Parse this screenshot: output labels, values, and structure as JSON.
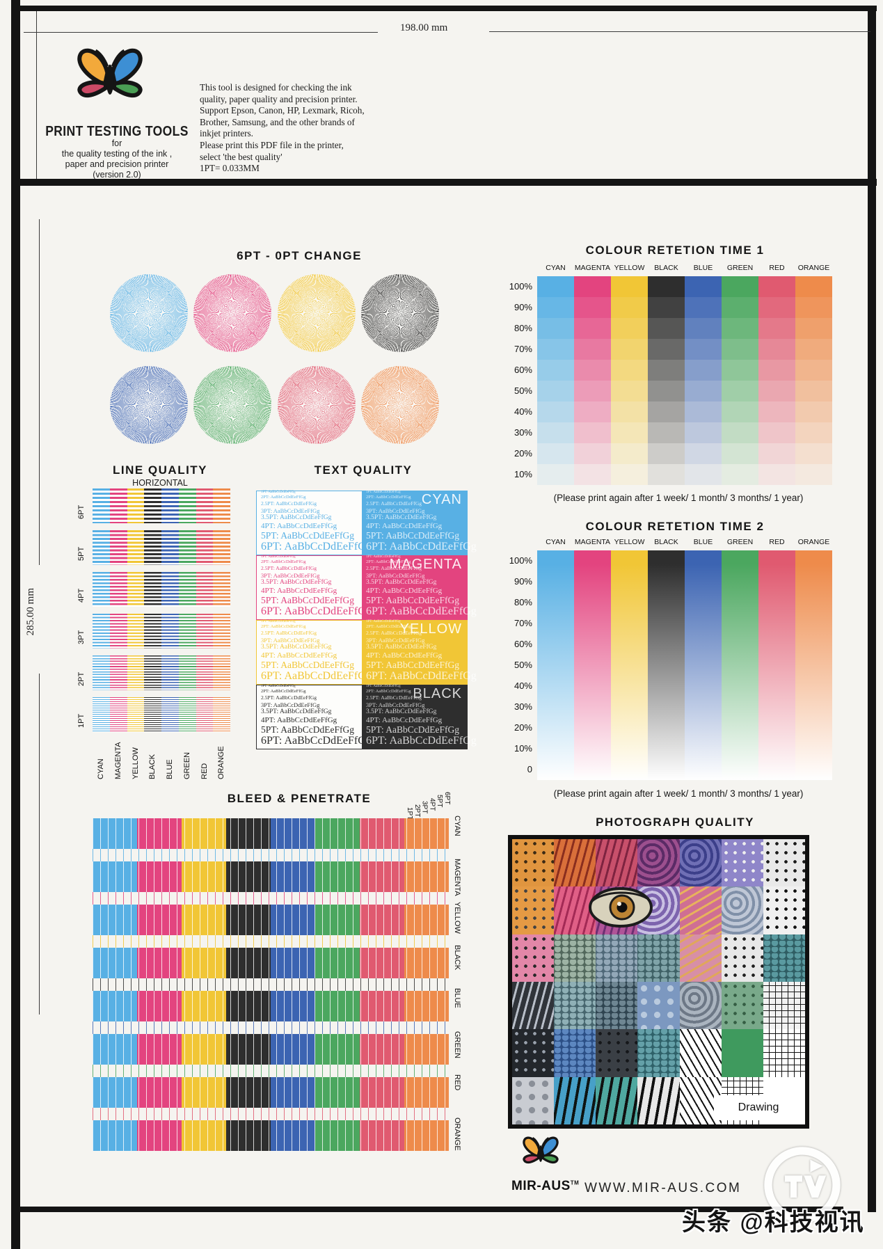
{
  "rulers": {
    "top": "198.00 mm",
    "left": "285.00 mm"
  },
  "header": {
    "brand_title": "PRINT  TESTING  TOOLS",
    "brand_sub1": "for",
    "brand_sub2": "the quality testing of the ink ,",
    "brand_sub3": "paper  and precision printer",
    "brand_sub4": "(version 2.0)",
    "description_lines": [
      "This tool is designed for checking the ink",
      "quality, paper quality and precision printer.",
      "Support Epson, Canon, HP, Lexmark, Ricoh,",
      "Brother, Samsung, and the other brands of",
      "inkjet printers.",
      "Please print this PDF file in the printer,",
      "select 'the best quality'",
      "1PT= 0.033MM"
    ]
  },
  "palette": {
    "CYAN": "#58b0e4",
    "MAGENTA": "#e3447f",
    "YELLOW": "#f1c636",
    "BLACK": "#2e2e2e",
    "BLUE": "#3c64b2",
    "GREEN": "#4ba75f",
    "RED": "#e05a70",
    "ORANGE": "#ee8b4b"
  },
  "color_names": [
    "CYAN",
    "MAGENTA",
    "YELLOW",
    "BLACK",
    "BLUE",
    "GREEN",
    "RED",
    "ORANGE"
  ],
  "change": {
    "title": "6PT - 0PT CHANGE",
    "circles_row1": [
      "CYAN",
      "MAGENTA",
      "YELLOW",
      "BLACK"
    ],
    "circles_row2": [
      "BLUE",
      "GREEN",
      "RED",
      "ORANGE"
    ]
  },
  "line_quality": {
    "title": "LINE QUALITY",
    "subtitle": "HORIZONTAL",
    "row_labels": [
      "6PT",
      "5PT",
      "4PT",
      "3PT",
      "2PT",
      "1PT"
    ],
    "column_labels": [
      "CYAN",
      "MAGENTA",
      "YELLOW",
      "BLACK",
      "BLUE",
      "GREEN",
      "RED",
      "ORANGE"
    ]
  },
  "text_quality": {
    "title": "TEXT QUALITY",
    "sample_text": "AaBbCcDdEeFfGg",
    "sizes": [
      "1PT",
      "2PT",
      "2.5PT",
      "3PT",
      "3.5PT",
      "4PT",
      "5PT",
      "6PT"
    ],
    "blocks": [
      "CYAN",
      "MAGENTA",
      "YELLOW",
      "BLACK"
    ]
  },
  "retention1": {
    "title": "COLOUR RETETION TIME 1",
    "columns": [
      "CYAN",
      "MAGENTA",
      "YELLOW",
      "BLACK",
      "BLUE",
      "GREEN",
      "RED",
      "ORANGE"
    ],
    "row_labels": [
      "100%",
      "90%",
      "80%",
      "70%",
      "60%",
      "50%",
      "40%",
      "30%",
      "20%",
      "10%"
    ],
    "caption": "(Please print again after 1 week/ 1 month/ 3 months/ 1 year)"
  },
  "retention2": {
    "title": "COLOUR RETETION TIME 2",
    "columns": [
      "CYAN",
      "MAGENTA",
      "YELLOW",
      "BLACK",
      "BLUE",
      "GREEN",
      "RED",
      "ORANGE"
    ],
    "row_labels": [
      "100%",
      "90%",
      "80%",
      "70%",
      "60%",
      "50%",
      "40%",
      "30%",
      "20%",
      "10%",
      "0"
    ],
    "caption": "(Please print again after 1 week/ 1 month/ 3 months/ 1 year)"
  },
  "bleed": {
    "title": "BLEED & PENETRATE",
    "pt_labels": [
      "1PT",
      "2PT",
      "3PT",
      "4PT",
      "5PT",
      "6PT"
    ],
    "row_labels": [
      "CYAN",
      "MAGENTA",
      "YELLOW",
      "BLACK",
      "BLUE",
      "GREEN",
      "RED",
      "ORANGE"
    ]
  },
  "photo": {
    "title": "PHOTOGRAPH QUALITY",
    "caption": "Drawing",
    "tiles": [
      {
        "c": "#e0953f",
        "c2": "#3b2a14",
        "p": "dots"
      },
      {
        "c": "#d96f3a",
        "c2": "#8a2e1e",
        "p": "streak"
      },
      {
        "c": "#c8506b",
        "c2": "#7e2340",
        "p": "streak"
      },
      {
        "c": "#9c4f8e",
        "c2": "#5b2b66",
        "p": "swirl"
      },
      {
        "c": "#6f6fb5",
        "c2": "#3c3f8a",
        "p": "swirl"
      },
      {
        "c": "#8f86c9",
        "c2": "#efefef",
        "p": "dots"
      },
      {
        "c": "#e9e9e9",
        "c2": "#1a1a1a",
        "p": "dots"
      },
      {
        "c": "#e59a44",
        "c2": "#424242",
        "p": "dots"
      },
      {
        "c": "#e05f86",
        "c2": "#a32a55",
        "p": "streak"
      },
      {
        "c": "#b05498",
        "c2": "#6d2f72",
        "p": "streak"
      },
      {
        "c": "#7d64ae",
        "c2": "#c9c0e2",
        "p": "swirl"
      },
      {
        "c": "#cf6f93",
        "c2": "#e8b25c",
        "p": "spike"
      },
      {
        "c": "#bfc7d6",
        "c2": "#8090a8",
        "p": "swirl"
      },
      {
        "c": "#f0f0f0",
        "c2": "#101010",
        "p": "dots"
      },
      {
        "c": "#e387a8",
        "c2": "#272727",
        "p": "dots"
      },
      {
        "c": "#9db3a4",
        "c2": "#52685c",
        "p": "scales"
      },
      {
        "c": "#93a8b8",
        "c2": "#4f6878",
        "p": "scales"
      },
      {
        "c": "#7fa3a8",
        "c2": "#3f6166",
        "p": "scales"
      },
      {
        "c": "#d78fa6",
        "c2": "#e0a75a",
        "p": "spike"
      },
      {
        "c": "#e8e8e8",
        "c2": "#202020",
        "p": "dots"
      },
      {
        "c": "#5a9aa0",
        "c2": "#2f5d63",
        "p": "scales"
      },
      {
        "c": "#30343a",
        "c2": "#b8bec8",
        "p": "streak"
      },
      {
        "c": "#8fb0b6",
        "c2": "#47666e",
        "p": "scales"
      },
      {
        "c": "#6e8692",
        "c2": "#2f4450",
        "p": "scales"
      },
      {
        "c": "#7c98c0",
        "c2": "#b9cade",
        "p": "bubbles"
      },
      {
        "c": "#aab4bf",
        "c2": "#6d7886",
        "p": "swirl"
      },
      {
        "c": "#79a98a",
        "c2": "#355e44",
        "p": "dots"
      },
      {
        "c": "#f2f2f2",
        "c2": "#181818",
        "p": "grid"
      },
      {
        "c": "#23272c",
        "c2": "#9aa2ad",
        "p": "dots"
      },
      {
        "c": "#5d87c0",
        "c2": "#2c4f86",
        "p": "scales"
      },
      {
        "c": "#3a3f45",
        "c2": "#15171a",
        "p": "dots"
      },
      {
        "c": "#64a0a8",
        "c2": "#2f6169",
        "p": "scales"
      },
      {
        "c": "#ffffff",
        "c2": "#111111",
        "p": "comic"
      },
      {
        "c": "#3f9a5e",
        "c2": "#2d7a46",
        "p": "plain"
      },
      {
        "c": "#ffffff",
        "c2": "#111111",
        "p": "grid"
      },
      {
        "c": "#c9ccd2",
        "c2": "#8a8f98",
        "p": "bubbles"
      },
      {
        "c": "#47a0c8",
        "c2": "#0e1412",
        "p": "zebra"
      },
      {
        "c": "#4fa8a0",
        "c2": "#101010",
        "p": "zebra"
      },
      {
        "c": "#e8e8e8",
        "c2": "#101010",
        "p": "zebra"
      },
      {
        "c": "#ffffff",
        "c2": "#101010",
        "p": "comic"
      },
      {
        "c": "#ffffff",
        "c2": "#151515",
        "p": "grid"
      },
      {
        "c": "#ffffff",
        "c2": "#000000",
        "p": "plain"
      }
    ]
  },
  "footer": {
    "brand": "MIR-AUS",
    "tm": "TM",
    "url": "WWW.MIR-AUS.COM"
  },
  "watermark": {
    "text": "头条 @科技视讯",
    "logo": "TV"
  }
}
